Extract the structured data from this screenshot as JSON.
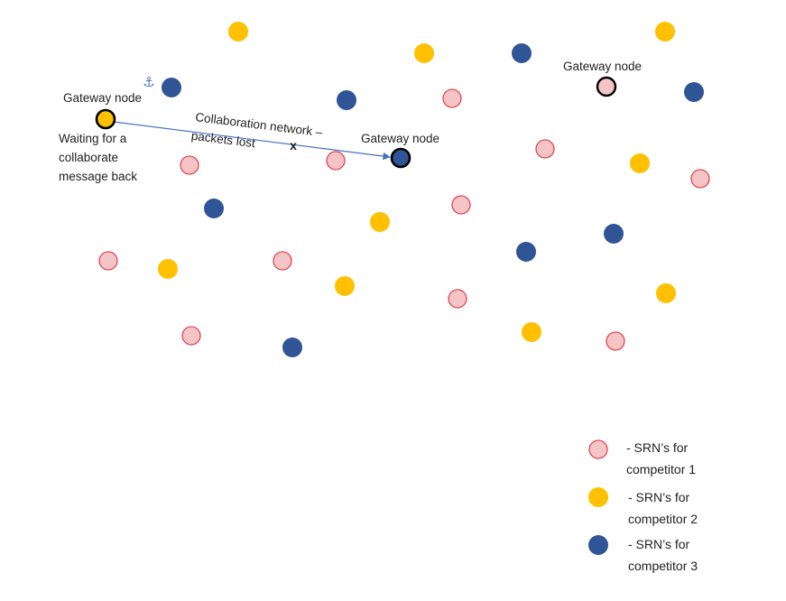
{
  "colors": {
    "competitor1_fill": "#f5c4c7",
    "competitor1_stroke": "#e0474f",
    "competitor2_fill": "#ffc000",
    "competitor3_fill": "#2f5597",
    "link": "#4472c4",
    "gateway_ring": "#000000"
  },
  "icons": {
    "anchor": "anchor-icon",
    "lost_packet": "x-mark-icon"
  },
  "labels": {
    "gateway_left": "Gateway node",
    "waiting_line1": "Waiting for a",
    "waiting_line2": "collaborate",
    "waiting_line3": "message back",
    "gateway_center": "Gateway node",
    "gateway_right": "Gateway node",
    "link_line1": "Collaboration network –",
    "link_line2": "packets lost",
    "lost_mark": "x",
    "anchor_glyph": "⚓"
  },
  "legend": {
    "c1_line1": "- SRN’s for",
    "c1_line2": "competitor 1",
    "c2_line1": "- SRN’s for",
    "c2_line2": "competitor 2",
    "c3_line1": "- SRN’s for",
    "c3_line2": "competitor 3"
  }
}
